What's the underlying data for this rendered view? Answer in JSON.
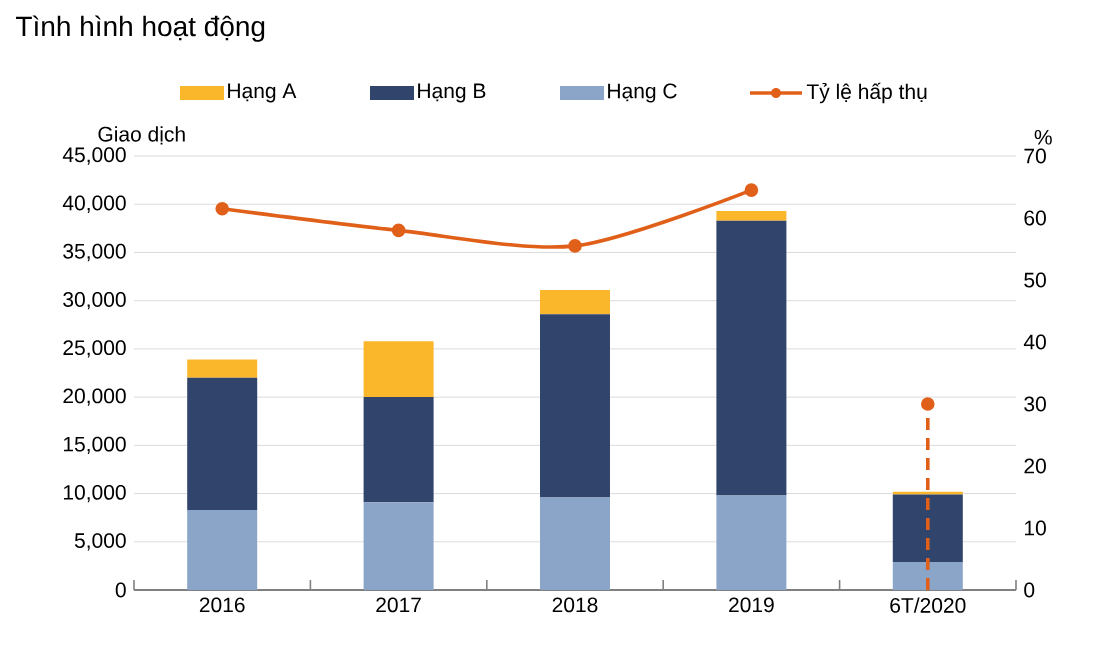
{
  "chart_data": {
    "type": "bar",
    "title": "Tình hình hoạt động",
    "ylabel": "Giao dịch",
    "y2label": "%",
    "categories": [
      "2016",
      "2017",
      "2018",
      "2019",
      "6T/2020"
    ],
    "stacked": true,
    "series": [
      {
        "name": "Hạng C",
        "color": "#8ba5c9",
        "values": [
          8300,
          9100,
          9600,
          9800,
          2900
        ]
      },
      {
        "name": "Hạng B",
        "color": "#31446b",
        "values": [
          13700,
          10900,
          19000,
          28500,
          7000
        ]
      },
      {
        "name": "Hạng A",
        "color": "#fbb72b",
        "values": [
          1900,
          5800,
          2500,
          1000,
          300
        ]
      },
      {
        "name": "Tỷ lệ hấp thụ",
        "type": "line",
        "axis": "y2",
        "color": "#e0601a",
        "marker": "circle",
        "line_style": "solid",
        "values": [
          61.5,
          58,
          55.5,
          64.5,
          null
        ]
      },
      {
        "type": "line",
        "axis": "y2",
        "color": "#e0601a",
        "marker": "circle",
        "line_style": "dashed",
        "x": [
          "6T/2020",
          "6T/2020"
        ],
        "values": [
          0,
          30
        ]
      }
    ],
    "ylim": [
      0,
      45000
    ],
    "yticks": [
      {
        "value": 0,
        "label": "0"
      },
      {
        "value": 5000,
        "label": "5,000"
      },
      {
        "value": 10000,
        "label": "10,000"
      },
      {
        "value": 15000,
        "label": "15,000"
      },
      {
        "value": 20000,
        "label": "20,000"
      },
      {
        "value": 25000,
        "label": "25,000"
      },
      {
        "value": 30000,
        "label": "30,000"
      },
      {
        "value": 35000,
        "label": "35,000"
      },
      {
        "value": 40000,
        "label": "40,000"
      },
      {
        "value": 45000,
        "label": "45,000"
      }
    ],
    "y2lim": [
      0,
      70
    ],
    "y2ticks": [
      0,
      10,
      20,
      30,
      40,
      50,
      60,
      70
    ],
    "grid": "y",
    "legend": "top"
  }
}
